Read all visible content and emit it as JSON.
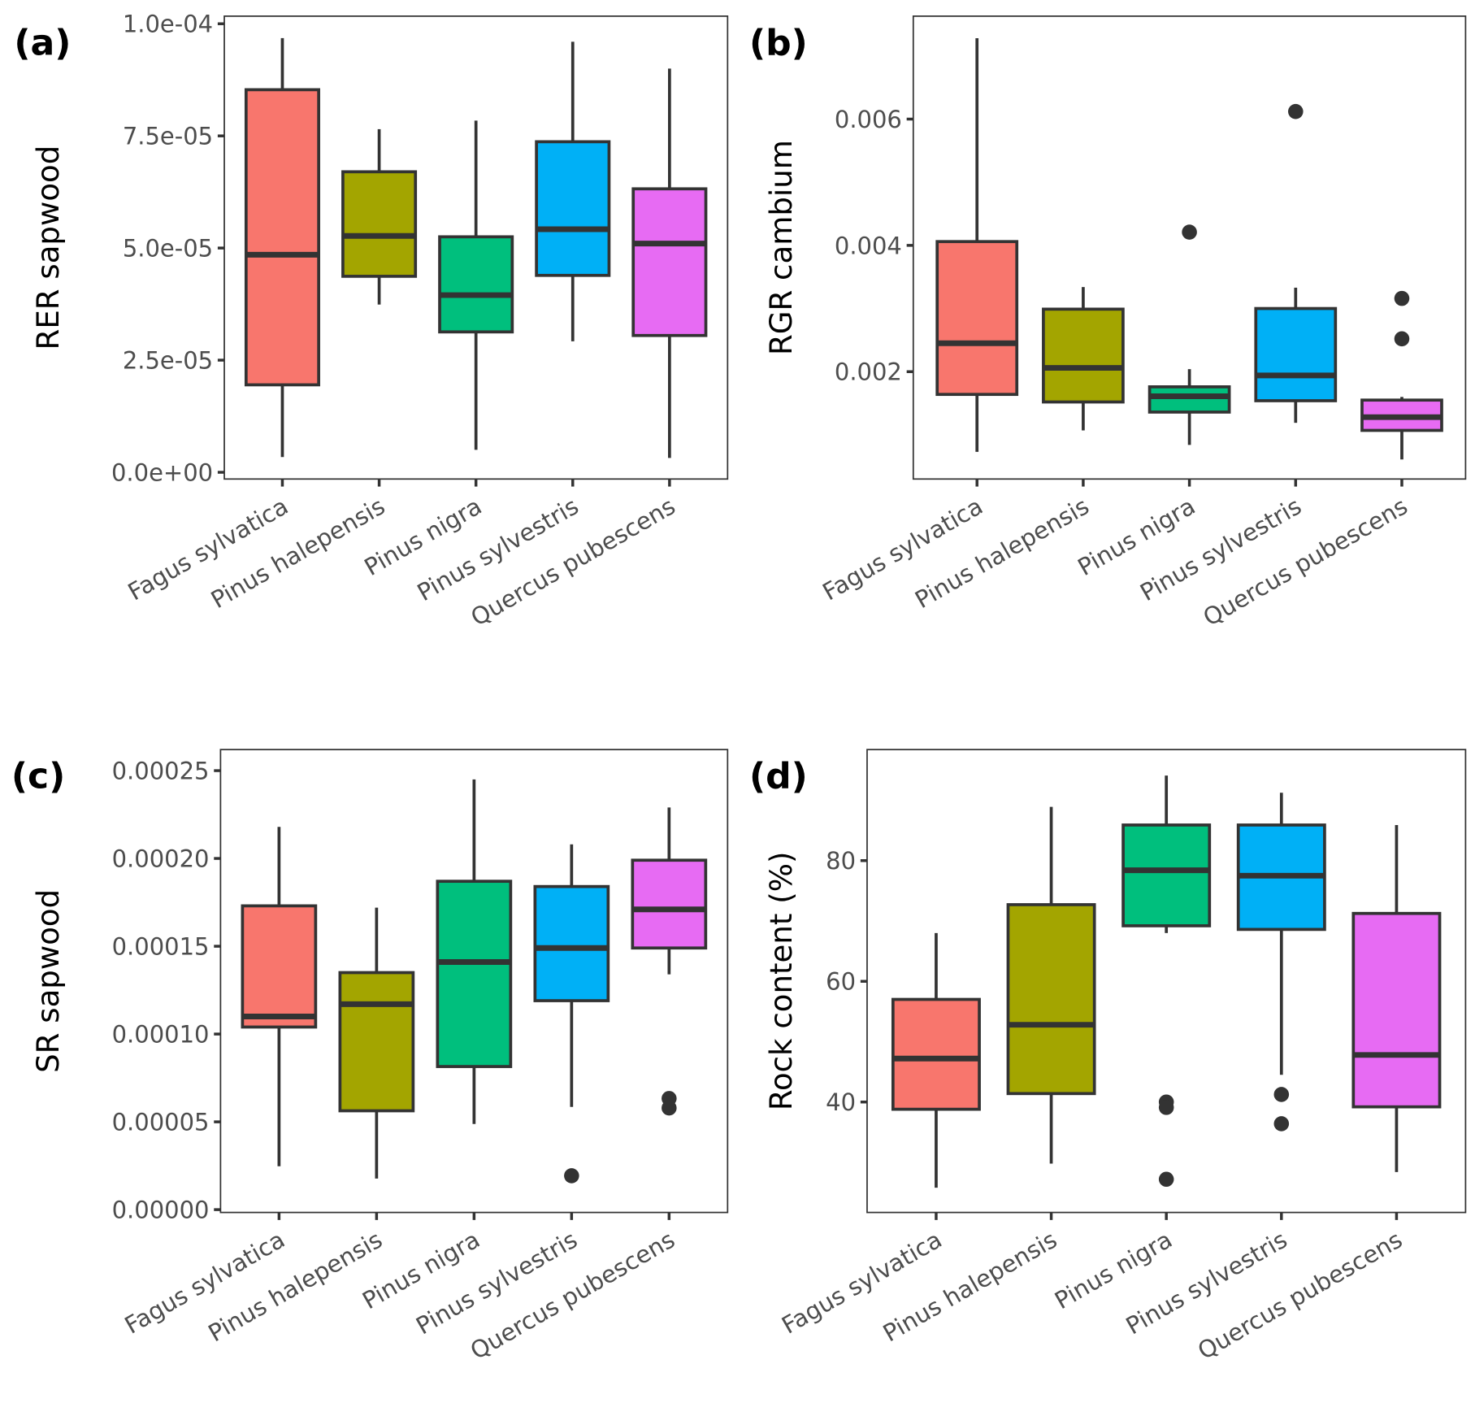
{
  "colors": {
    "categories": [
      "#F8766D",
      "#A3A500",
      "#00BF7D",
      "#00B0F6",
      "#E76BF3"
    ],
    "outline": "#333333",
    "panel_border": "#333333",
    "tick_text": "#4d4d4d"
  },
  "chart_data": [
    {
      "type": "box",
      "tag": "(a)",
      "ylabel": "RER sapwood",
      "xlabel": "",
      "categories": [
        "Fagus sylvatica",
        "Pinus halepensis",
        "Pinus nigra",
        "Pinus sylvestris",
        "Quercus pubescens"
      ],
      "ylim": [
        -1.5e-06,
        0.0001017
      ],
      "yticks": [
        0,
        2.5e-05,
        5e-05,
        7.5e-05,
        0.0001
      ],
      "ytick_labels": [
        "0.0e+00",
        "2.5e-05",
        "5.0e-05",
        "7.5e-05",
        "1.0e-04"
      ],
      "grid": false,
      "boxes": [
        {
          "min": 3.4e-06,
          "q1": 1.95e-05,
          "median": 4.85e-05,
          "q3": 8.53e-05,
          "max": 9.68e-05,
          "outliers": []
        },
        {
          "min": 3.74e-05,
          "q1": 4.37e-05,
          "median": 5.27e-05,
          "q3": 6.7e-05,
          "max": 7.65e-05,
          "outliers": []
        },
        {
          "min": 5e-06,
          "q1": 3.13e-05,
          "median": 3.95e-05,
          "q3": 5.25e-05,
          "max": 7.84e-05,
          "outliers": []
        },
        {
          "min": 2.92e-05,
          "q1": 4.39e-05,
          "median": 5.42e-05,
          "q3": 7.37e-05,
          "max": 9.6e-05,
          "outliers": []
        },
        {
          "min": 3.2e-06,
          "q1": 3.05e-05,
          "median": 5.1e-05,
          "q3": 6.32e-05,
          "max": 9e-05,
          "outliers": []
        }
      ]
    },
    {
      "type": "box",
      "tag": "(b)",
      "ylabel": "RGR cambium",
      "xlabel": "",
      "categories": [
        "Fagus sylvatica",
        "Pinus halepensis",
        "Pinus nigra",
        "Pinus sylvestris",
        "Quercus pubescens"
      ],
      "ylim": [
        0.0003,
        0.00763
      ],
      "yticks": [
        0.002,
        0.004,
        0.006
      ],
      "ytick_labels": [
        "0.002",
        "0.004",
        "0.006"
      ],
      "grid": false,
      "boxes": [
        {
          "min": 0.00073,
          "q1": 0.00164,
          "median": 0.00245,
          "q3": 0.00406,
          "max": 0.00728,
          "outliers": []
        },
        {
          "min": 0.00107,
          "q1": 0.00152,
          "median": 0.00206,
          "q3": 0.00299,
          "max": 0.00334,
          "outliers": []
        },
        {
          "min": 0.00084,
          "q1": 0.00136,
          "median": 0.00161,
          "q3": 0.00176,
          "max": 0.00204,
          "outliers": [
            0.00421
          ]
        },
        {
          "min": 0.00119,
          "q1": 0.00154,
          "median": 0.00194,
          "q3": 0.003,
          "max": 0.00333,
          "outliers": [
            0.00612
          ]
        },
        {
          "min": 0.00061,
          "q1": 0.00107,
          "median": 0.00128,
          "q3": 0.00155,
          "max": 0.0016,
          "outliers": [
            0.00316,
            0.00252
          ]
        }
      ]
    },
    {
      "type": "box",
      "tag": "(c)",
      "ylabel": "SR sapwood",
      "xlabel": "",
      "categories": [
        "Fagus sylvatica",
        "Pinus halepensis",
        "Pinus nigra",
        "Pinus sylvestris",
        "Quercus pubescens"
      ],
      "ylim": [
        -1.6e-06,
        0.000262
      ],
      "yticks": [
        0,
        5e-05,
        0.0001,
        0.00015,
        0.0002,
        0.00025
      ],
      "ytick_labels": [
        "0.00000",
        "0.00005",
        "0.00010",
        "0.00015",
        "0.00020",
        "0.00025"
      ],
      "grid": false,
      "boxes": [
        {
          "min": 2.47e-05,
          "q1": 0.000104,
          "median": 0.00011,
          "q3": 0.000173,
          "max": 0.000218,
          "outliers": []
        },
        {
          "min": 1.77e-05,
          "q1": 5.63e-05,
          "median": 0.000117,
          "q3": 0.000135,
          "max": 0.000172,
          "outliers": []
        },
        {
          "min": 4.88e-05,
          "q1": 8.15e-05,
          "median": 0.000141,
          "q3": 0.000187,
          "max": 0.000245,
          "outliers": []
        },
        {
          "min": 5.85e-05,
          "q1": 0.000119,
          "median": 0.000149,
          "q3": 0.000184,
          "max": 0.000208,
          "outliers": [
            1.93e-05
          ]
        },
        {
          "min": 0.000134,
          "q1": 0.000149,
          "median": 0.000171,
          "q3": 0.000199,
          "max": 0.000229,
          "outliers": [
            6.33e-05,
            5.79e-05
          ]
        }
      ]
    },
    {
      "type": "box",
      "tag": "(d)",
      "ylabel": "Rock content (%)",
      "xlabel": "",
      "categories": [
        "Fagus sylvatica",
        "Pinus halepensis",
        "Pinus nigra",
        "Pinus sylvestris",
        "Quercus pubescens"
      ],
      "ylim": [
        21.7,
        98.4
      ],
      "yticks": [
        40,
        60,
        80
      ],
      "ytick_labels": [
        "40",
        "60",
        "80"
      ],
      "grid": false,
      "boxes": [
        {
          "min": 25.8,
          "q1": 38.8,
          "median": 47.2,
          "q3": 57.0,
          "max": 68.0,
          "outliers": []
        },
        {
          "min": 29.8,
          "q1": 41.4,
          "median": 52.8,
          "q3": 72.7,
          "max": 88.9,
          "outliers": []
        },
        {
          "min": 68.0,
          "q1": 69.2,
          "median": 78.4,
          "q3": 85.9,
          "max": 94.1,
          "outliers": [
            40.0,
            39.1,
            27.2
          ]
        },
        {
          "min": 44.5,
          "q1": 68.6,
          "median": 77.5,
          "q3": 85.9,
          "max": 91.25,
          "outliers": [
            41.25,
            36.4
          ]
        },
        {
          "min": 28.4,
          "q1": 39.2,
          "median": 47.8,
          "q3": 71.25,
          "max": 85.9,
          "outliers": []
        }
      ]
    }
  ]
}
